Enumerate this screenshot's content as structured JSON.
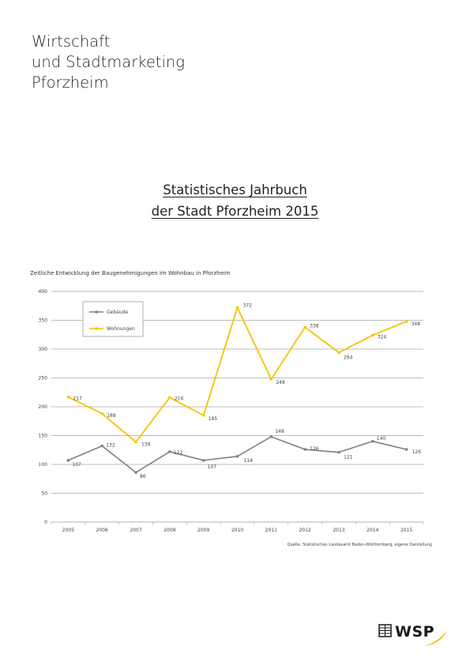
{
  "organization": {
    "lines": [
      "Wirtschaft",
      "und Stadtmarketing",
      "Pforzheim"
    ]
  },
  "document": {
    "title_lines": [
      "Statistisches Jahrbuch",
      "der Stadt Pforzheim 2015"
    ]
  },
  "chart_caption": "Zeitliche Entwicklung der Baugenehmigungen im Wohnbau in Pforzheim",
  "source_note": "Quelle: Statistisches Landesamt Baden-Württemberg, eigene Darstellung",
  "logo": {
    "text": "WSP",
    "icon": "building-icon",
    "accent_color": "#f2c200"
  },
  "chart_data": {
    "type": "line",
    "title": "Zeitliche Entwicklung der Baugenehmigungen im Wohnbau in Pforzheim",
    "xlabel": "",
    "ylabel": "",
    "x": [
      "2005",
      "2006",
      "2007",
      "2008",
      "2009",
      "2010",
      "2011",
      "2012",
      "2013",
      "2014",
      "2015"
    ],
    "ylim": [
      0,
      400
    ],
    "yticks": [
      0,
      50,
      100,
      150,
      200,
      250,
      300,
      350,
      400
    ],
    "grid": "horizontal",
    "legend_position": "top-left",
    "series": [
      {
        "name": "Gebäude",
        "color": "#808080",
        "values": [
          107,
          132,
          86,
          122,
          107,
          114,
          148,
          126,
          121,
          140,
          126
        ]
      },
      {
        "name": "Wohnungen",
        "color": "#f2c500",
        "values": [
          217,
          188,
          139,
          216,
          185,
          372,
          248,
          338,
          294,
          324,
          348
        ]
      }
    ]
  }
}
